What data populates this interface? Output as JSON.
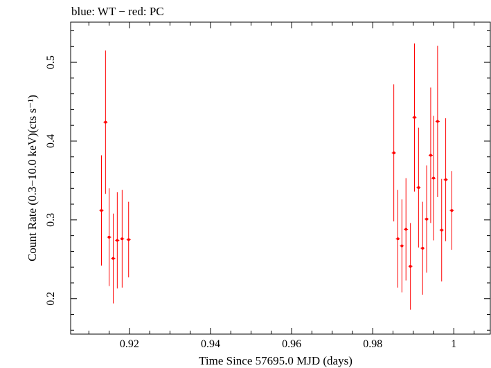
{
  "chart_data": {
    "type": "scatter",
    "title": "blue: WT − red: PC",
    "xlabel": "Time Since 57695.0 MJD (days)",
    "ylabel": "Count Rate (0.3−10.0 keV)(cts s⁻¹)",
    "xlim": [
      0.9055,
      1.009
    ],
    "ylim": [
      0.155,
      0.551
    ],
    "x_ticks": [
      0.92,
      0.94,
      0.96,
      0.98,
      1.0
    ],
    "x_tick_labels": [
      "0.92",
      "0.94",
      "0.96",
      "0.98",
      "1"
    ],
    "y_ticks": [
      0.2,
      0.3,
      0.4,
      0.5
    ],
    "y_tick_labels": [
      "0.2",
      "0.3",
      "0.4",
      "0.5"
    ],
    "grid": false,
    "series": [
      {
        "color": "#ff0000",
        "points": [
          {
            "x": 0.9131,
            "y": 0.312,
            "yerr": 0.07
          },
          {
            "x": 0.9141,
            "y": 0.424,
            "yerr": 0.091
          },
          {
            "x": 0.915,
            "y": 0.278,
            "yerr": 0.062
          },
          {
            "x": 0.916,
            "y": 0.251,
            "yerr": 0.057
          },
          {
            "x": 0.917,
            "y": 0.274,
            "yerr": 0.061
          },
          {
            "x": 0.9182,
            "y": 0.276,
            "yerr": 0.062
          },
          {
            "x": 0.9198,
            "y": 0.275,
            "yerr": 0.048
          },
          {
            "x": 0.9852,
            "y": 0.385,
            "yerr": 0.087
          },
          {
            "x": 0.9862,
            "y": 0.276,
            "yerr": 0.062
          },
          {
            "x": 0.9872,
            "y": 0.267,
            "yerr": 0.059
          },
          {
            "x": 0.9882,
            "y": 0.288,
            "yerr": 0.065
          },
          {
            "x": 0.9893,
            "y": 0.241,
            "yerr": 0.055
          },
          {
            "x": 0.9903,
            "y": 0.43,
            "yerr": 0.094
          },
          {
            "x": 0.9913,
            "y": 0.341,
            "yerr": 0.076
          },
          {
            "x": 0.9923,
            "y": 0.264,
            "yerr": 0.059
          },
          {
            "x": 0.9933,
            "y": 0.301,
            "yerr": 0.068
          },
          {
            "x": 0.9943,
            "y": 0.382,
            "yerr": 0.086
          },
          {
            "x": 0.995,
            "y": 0.353,
            "yerr": 0.079
          },
          {
            "x": 0.996,
            "y": 0.425,
            "yerr": 0.096
          },
          {
            "x": 0.997,
            "y": 0.287,
            "yerr": 0.065
          },
          {
            "x": 0.998,
            "y": 0.351,
            "yerr": 0.078
          },
          {
            "x": 0.9995,
            "y": 0.312,
            "yerr": 0.05
          }
        ]
      }
    ]
  }
}
